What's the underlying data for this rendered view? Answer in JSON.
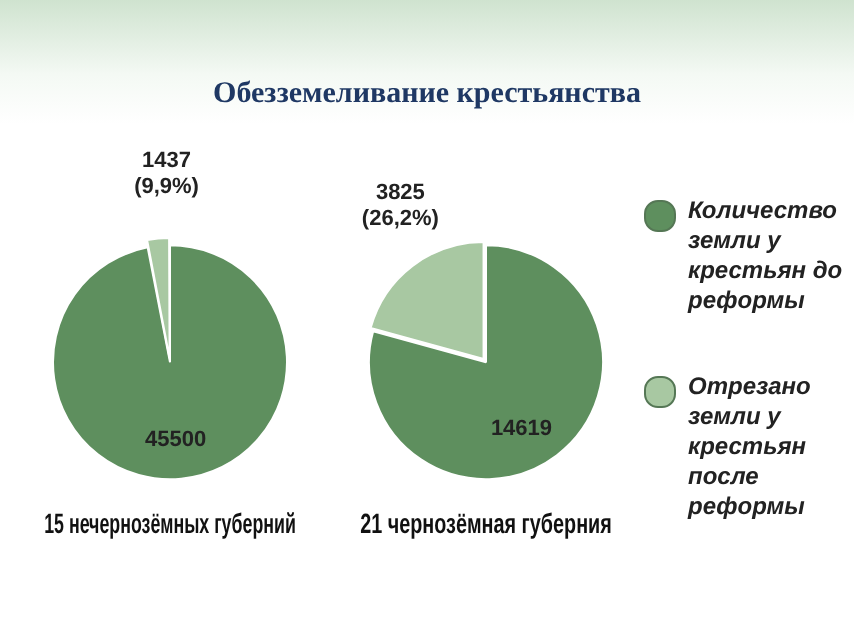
{
  "chart_data": [
    {
      "type": "other",
      "title": "Обезземеливание крестьянства"
    },
    {
      "type": "pie",
      "title": "15 нечернозёмных губерний",
      "categories": [
        null,
        null
      ],
      "values": [
        45500,
        1437
      ],
      "colors": [
        "#5e8f5e",
        "#a8c8a2"
      ],
      "value_labels": [
        "45500",
        "1437 (9,9%)"
      ],
      "legend": false
    },
    {
      "type": "pie",
      "title": "21 чернозёмная губерния",
      "categories": [
        "Количество земли у крестьян до реформы",
        "Отрезано земли у крестьян после реформы"
      ],
      "values": [
        14619,
        3825
      ],
      "colors": [
        "#5e8f5e",
        "#a8c8a2"
      ],
      "value_labels": [
        "14619",
        "3825 (26,2%)"
      ],
      "legend": "right"
    }
  ]
}
